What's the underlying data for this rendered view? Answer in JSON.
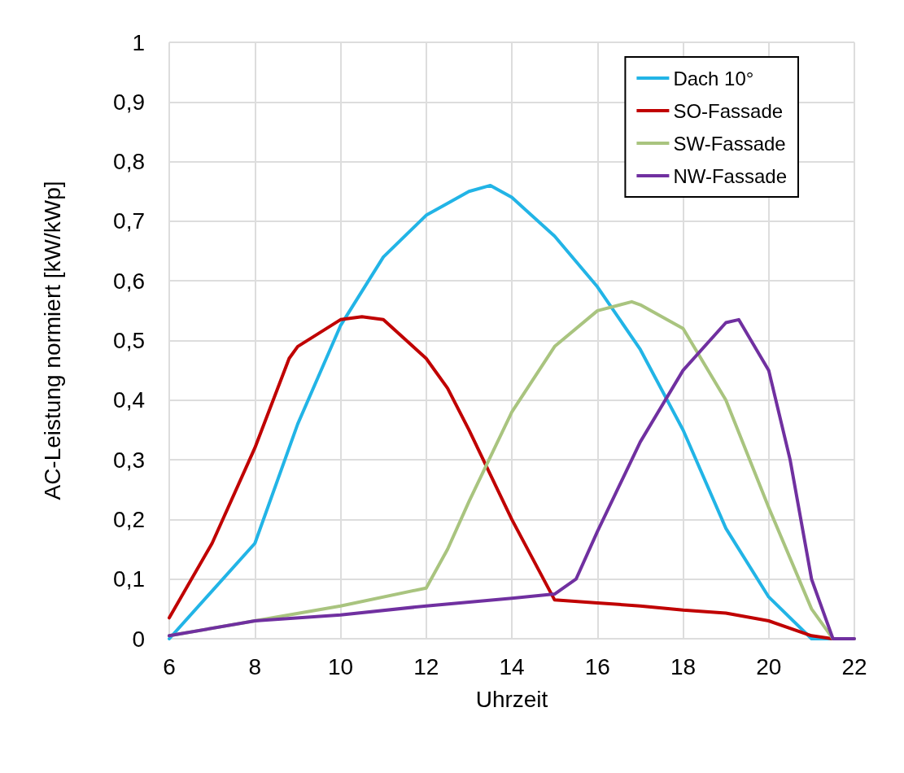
{
  "chart_data": {
    "type": "line",
    "xlabel": "Uhrzeit",
    "ylabel": "AC-Leistung normiert [kW/kWp]",
    "xlim": [
      6,
      22
    ],
    "xticks": [
      6,
      8,
      10,
      12,
      14,
      16,
      18,
      20,
      22
    ],
    "ylim": [
      0,
      1
    ],
    "yticks": [
      0,
      {
        "value": 0.1,
        "label": "0,1"
      },
      {
        "value": 0.2,
        "label": "0,2"
      },
      {
        "value": 0.3,
        "label": "0,3"
      },
      {
        "value": 0.4,
        "label": "0,4"
      },
      {
        "value": 0.5,
        "label": "0,5"
      },
      {
        "value": 0.6,
        "label": "0,6"
      },
      {
        "value": 0.7,
        "label": "0,7"
      },
      {
        "value": 0.8,
        "label": "0,8"
      },
      {
        "value": 0.9,
        "label": "0,9"
      },
      1
    ],
    "grid": true,
    "legend": "top right",
    "marker": "none",
    "line_style": "solid",
    "series": [
      {
        "name": "Dach 10°",
        "color": "#22b4e6",
        "x": [
          6,
          7,
          8,
          9,
          10,
          11,
          12,
          13,
          13.5,
          14,
          15,
          16,
          17,
          18,
          19,
          20,
          21,
          21.5
        ],
        "values": [
          0,
          0.08,
          0.16,
          0.36,
          0.525,
          0.64,
          0.71,
          0.75,
          0.76,
          0.74,
          0.675,
          0.59,
          0.485,
          0.35,
          0.185,
          0.07,
          0,
          0
        ]
      },
      {
        "name": "SO-Fassade",
        "color": "#c00000",
        "x": [
          6,
          7,
          8,
          8.8,
          9,
          10,
          10.5,
          11,
          12,
          12.5,
          13,
          14,
          15,
          16,
          17,
          18,
          19,
          20,
          21,
          21.5
        ],
        "values": [
          0.035,
          0.16,
          0.32,
          0.47,
          0.49,
          0.535,
          0.54,
          0.535,
          0.47,
          0.42,
          0.35,
          0.2,
          0.065,
          0.06,
          0.055,
          0.048,
          0.043,
          0.03,
          0.005,
          0
        ]
      },
      {
        "name": "SW-Fassade",
        "color": "#a9c47f",
        "x": [
          6,
          8,
          10,
          12,
          12.5,
          13,
          14,
          15,
          16,
          16.8,
          17,
          18,
          19,
          20,
          21,
          21.5,
          22
        ],
        "values": [
          0.005,
          0.03,
          0.055,
          0.085,
          0.15,
          0.23,
          0.38,
          0.49,
          0.55,
          0.565,
          0.56,
          0.52,
          0.4,
          0.22,
          0.05,
          0,
          0
        ]
      },
      {
        "name": "NW-Fassade",
        "color": "#7030a0",
        "x": [
          6,
          8,
          10,
          12,
          14,
          15,
          15.5,
          16,
          17,
          18,
          19,
          19.3,
          20,
          20.5,
          21,
          21.5,
          22
        ],
        "values": [
          0.005,
          0.03,
          0.04,
          0.055,
          0.068,
          0.075,
          0.1,
          0.18,
          0.33,
          0.45,
          0.53,
          0.535,
          0.45,
          0.3,
          0.1,
          0,
          0
        ]
      }
    ]
  }
}
